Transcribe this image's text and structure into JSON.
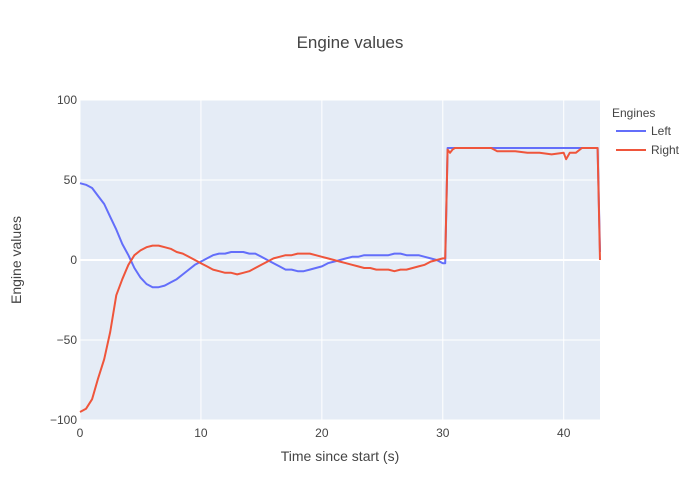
{
  "chart_data": {
    "type": "line",
    "title": "Engine values",
    "xlabel": "Time since start (s)",
    "ylabel": "Engine values",
    "xlim": [
      0,
      43
    ],
    "ylim": [
      -100,
      100
    ],
    "x_ticks": [
      0,
      10,
      20,
      30,
      40
    ],
    "y_ticks": [
      -100,
      -50,
      0,
      50,
      100
    ],
    "x_tick_labels": [
      "0",
      "10",
      "20",
      "30",
      "40"
    ],
    "y_tick_labels": [
      "−100",
      "−50",
      "0",
      "50",
      "100"
    ],
    "grid": true,
    "legend_title": "Engines",
    "legend_position": "right",
    "series": [
      {
        "name": "Left",
        "color": "#636efa",
        "x": [
          0,
          0.5,
          1.0,
          1.5,
          2.0,
          2.5,
          3.0,
          3.5,
          4.0,
          4.5,
          5.0,
          5.5,
          6.0,
          6.5,
          7.0,
          7.5,
          8.0,
          8.5,
          9.0,
          9.5,
          10.0,
          10.5,
          11.0,
          11.5,
          12.0,
          12.5,
          13.0,
          13.5,
          14.0,
          14.5,
          15.0,
          15.5,
          16.0,
          16.5,
          17.0,
          17.5,
          18.0,
          18.5,
          19.0,
          19.5,
          20.0,
          20.5,
          21.0,
          21.5,
          22.0,
          22.5,
          23.0,
          23.5,
          24.0,
          24.5,
          25.0,
          25.5,
          26.0,
          26.5,
          27.0,
          27.5,
          28.0,
          28.5,
          29.0,
          29.5,
          30.0,
          30.2,
          30.4,
          30.5,
          31.0,
          32.0,
          33.0,
          34.0,
          35.0,
          36.0,
          37.0,
          38.0,
          39.0,
          40.0,
          40.5,
          41.0,
          41.5,
          42.0,
          42.5,
          42.8,
          43.0
        ],
        "values": [
          48,
          47,
          45,
          40,
          35,
          27,
          19,
          10,
          3,
          -5,
          -11,
          -15,
          -17,
          -17,
          -16,
          -14,
          -12,
          -9,
          -6,
          -3,
          -1,
          1,
          3,
          4,
          4,
          5,
          5,
          5,
          4,
          4,
          2,
          0,
          -2,
          -4,
          -6,
          -6,
          -7,
          -7,
          -6,
          -5,
          -4,
          -2,
          -1,
          0,
          1,
          2,
          2,
          3,
          3,
          3,
          3,
          3,
          4,
          4,
          3,
          3,
          3,
          2,
          1,
          0,
          -2,
          -2,
          70,
          70,
          70,
          70,
          70,
          70,
          70,
          70,
          70,
          70,
          70,
          70,
          70,
          70,
          70,
          70,
          70,
          70,
          5
        ]
      },
      {
        "name": "Right",
        "color": "#ef553b",
        "x": [
          0,
          0.5,
          1.0,
          1.5,
          2.0,
          2.5,
          3.0,
          3.5,
          4.0,
          4.5,
          5.0,
          5.5,
          6.0,
          6.5,
          7.0,
          7.5,
          8.0,
          8.5,
          9.0,
          9.5,
          10.0,
          10.5,
          11.0,
          11.5,
          12.0,
          12.5,
          13.0,
          13.5,
          14.0,
          14.5,
          15.0,
          15.5,
          16.0,
          16.5,
          17.0,
          17.5,
          18.0,
          18.5,
          19.0,
          19.5,
          20.0,
          20.5,
          21.0,
          21.5,
          22.0,
          22.5,
          23.0,
          23.5,
          24.0,
          24.5,
          25.0,
          25.5,
          26.0,
          26.5,
          27.0,
          27.5,
          28.0,
          28.5,
          29.0,
          29.5,
          30.0,
          30.2,
          30.4,
          30.6,
          30.8,
          31.0,
          31.3,
          31.6,
          32.0,
          33.0,
          34.0,
          34.5,
          35.0,
          36.0,
          37.0,
          38.0,
          39.0,
          40.0,
          40.2,
          40.5,
          41.0,
          41.5,
          42.0,
          42.5,
          42.8,
          43.0
        ],
        "values": [
          -95,
          -93,
          -87,
          -74,
          -62,
          -45,
          -22,
          -12,
          -3,
          3,
          6,
          8,
          9,
          9,
          8,
          7,
          5,
          4,
          2,
          0,
          -2,
          -4,
          -6,
          -7,
          -8,
          -8,
          -9,
          -8,
          -7,
          -5,
          -3,
          -1,
          1,
          2,
          3,
          3,
          4,
          4,
          4,
          3,
          2,
          1,
          0,
          -1,
          -2,
          -3,
          -4,
          -5,
          -5,
          -6,
          -6,
          -6,
          -7,
          -6,
          -6,
          -5,
          -4,
          -3,
          -1,
          0,
          1,
          1,
          69,
          67,
          69,
          70,
          70,
          70,
          70,
          70,
          70,
          68,
          68,
          68,
          67,
          67,
          66,
          67,
          63,
          67,
          67,
          70,
          70,
          70,
          70,
          0
        ]
      }
    ]
  }
}
